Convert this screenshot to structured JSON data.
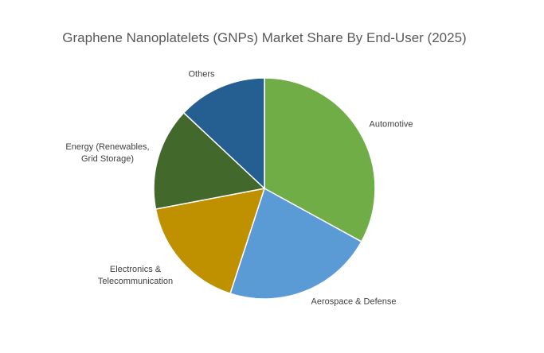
{
  "chart_data": {
    "type": "pie",
    "title": "Graphene Nanoplatelets (GNPs) Market Share By End-User (2025)",
    "categories": [
      "Automotive",
      "Aerospace & Defense",
      "Electronics & Telecommunication",
      "Energy (Renewables, Grid Storage)",
      "Others"
    ],
    "values": [
      33,
      22,
      17,
      15,
      13
    ],
    "colors": [
      "#70ad47",
      "#5b9bd5",
      "#bf9000",
      "#43682b",
      "#255e91"
    ]
  }
}
